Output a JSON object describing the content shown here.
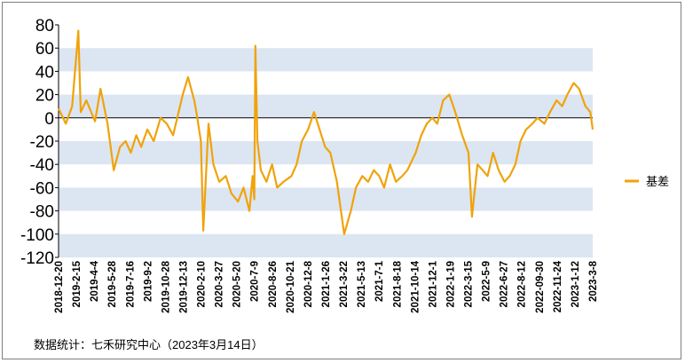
{
  "chart_data": {
    "type": "line",
    "title": "",
    "xlabel": "",
    "ylabel": "",
    "ylim": [
      -120,
      80
    ],
    "yticks": [
      80,
      60,
      40,
      20,
      0,
      -20,
      -40,
      -60,
      -80,
      -100,
      -120
    ],
    "x_tick_labels": [
      "2018-12-20",
      "2019-2-15",
      "2019-4-4",
      "2019-5-28",
      "2019-7-16",
      "2019-9-2",
      "2019-10-28",
      "2019-12-13",
      "2020-2-10",
      "2020-3-27",
      "2020-5-20",
      "2020-7-9",
      "2020-8-26",
      "2020-10-21",
      "2020-12-8",
      "2021-1-26",
      "2021-3-22",
      "2021-5-13",
      "2021-7-1",
      "2021-8-18",
      "2021-10-14",
      "2021-12-1",
      "2022-1-19",
      "2022-3-15",
      "2022-5-9",
      "2022-6-27",
      "2022-8-12",
      "2022-09-30",
      "2022-11-24",
      "2023-1-12",
      "2023-3-8"
    ],
    "grid": "alternating horizontal bands",
    "legend_position": "right",
    "series_color": "#F0A30A",
    "series": [
      {
        "name": "基差",
        "x": [
          "2018-12-20",
          "2019-1-10",
          "2019-1-28",
          "2019-2-15",
          "2019-2-22",
          "2019-3-10",
          "2019-4-4",
          "2019-4-20",
          "2019-5-10",
          "2019-5-28",
          "2019-6-15",
          "2019-7-1",
          "2019-7-16",
          "2019-8-1",
          "2019-8-15",
          "2019-9-2",
          "2019-9-20",
          "2019-10-10",
          "2019-10-28",
          "2019-11-15",
          "2019-12-1",
          "2019-12-13",
          "2019-12-28",
          "2020-1-15",
          "2020-1-21",
          "2020-2-3",
          "2020-2-10",
          "2020-2-25",
          "2020-3-10",
          "2020-3-27",
          "2020-4-15",
          "2020-5-1",
          "2020-5-20",
          "2020-6-5",
          "2020-6-22",
          "2020-7-1",
          "2020-7-6",
          "2020-7-9",
          "2020-7-15",
          "2020-7-25",
          "2020-8-10",
          "2020-8-26",
          "2020-9-10",
          "2020-9-28",
          "2020-10-21",
          "2020-11-5",
          "2020-11-20",
          "2020-12-8",
          "2020-12-25",
          "2021-1-10",
          "2021-1-26",
          "2021-2-10",
          "2021-3-1",
          "2021-3-22",
          "2021-4-10",
          "2021-4-25",
          "2021-5-13",
          "2021-5-30",
          "2021-6-15",
          "2021-7-1",
          "2021-7-15",
          "2021-8-1",
          "2021-8-18",
          "2021-9-5",
          "2021-9-20",
          "2021-10-14",
          "2021-10-30",
          "2021-11-15",
          "2021-12-1",
          "2021-12-15",
          "2022-1-1",
          "2022-1-19",
          "2022-2-5",
          "2022-2-25",
          "2022-3-15",
          "2022-3-25",
          "2022-4-10",
          "2022-4-25",
          "2022-5-9",
          "2022-5-25",
          "2022-6-10",
          "2022-6-27",
          "2022-7-12",
          "2022-7-28",
          "2022-8-12",
          "2022-8-28",
          "2022-9-15",
          "2022-09-30",
          "2022-10-20",
          "2022-11-5",
          "2022-11-24",
          "2022-12-10",
          "2022-12-25",
          "2023-1-12",
          "2023-1-28",
          "2023-2-15",
          "2023-3-1",
          "2023-3-8"
        ],
        "values": [
          8,
          -5,
          10,
          75,
          5,
          15,
          -3,
          25,
          -5,
          -45,
          -25,
          -20,
          -30,
          -15,
          -25,
          -10,
          -20,
          0,
          -5,
          -15,
          5,
          20,
          35,
          15,
          5,
          -20,
          -97,
          -5,
          -40,
          -55,
          -50,
          -65,
          -72,
          -60,
          -80,
          -50,
          -70,
          62,
          -20,
          -45,
          -55,
          -40,
          -60,
          -55,
          -50,
          -40,
          -20,
          -10,
          5,
          -10,
          -25,
          -30,
          -55,
          -100,
          -80,
          -60,
          -50,
          -55,
          -45,
          -50,
          -60,
          -40,
          -55,
          -50,
          -45,
          -30,
          -15,
          -5,
          0,
          -5,
          15,
          20,
          5,
          -15,
          -30,
          -85,
          -40,
          -45,
          -50,
          -30,
          -45,
          -55,
          -50,
          -40,
          -20,
          -10,
          -5,
          0,
          -5,
          5,
          15,
          10,
          20,
          30,
          25,
          10,
          5,
          -10
        ]
      }
    ]
  },
  "legend": {
    "label": "基差"
  },
  "source_note": "数据统计：七禾研究中心（2023年3月14日）"
}
